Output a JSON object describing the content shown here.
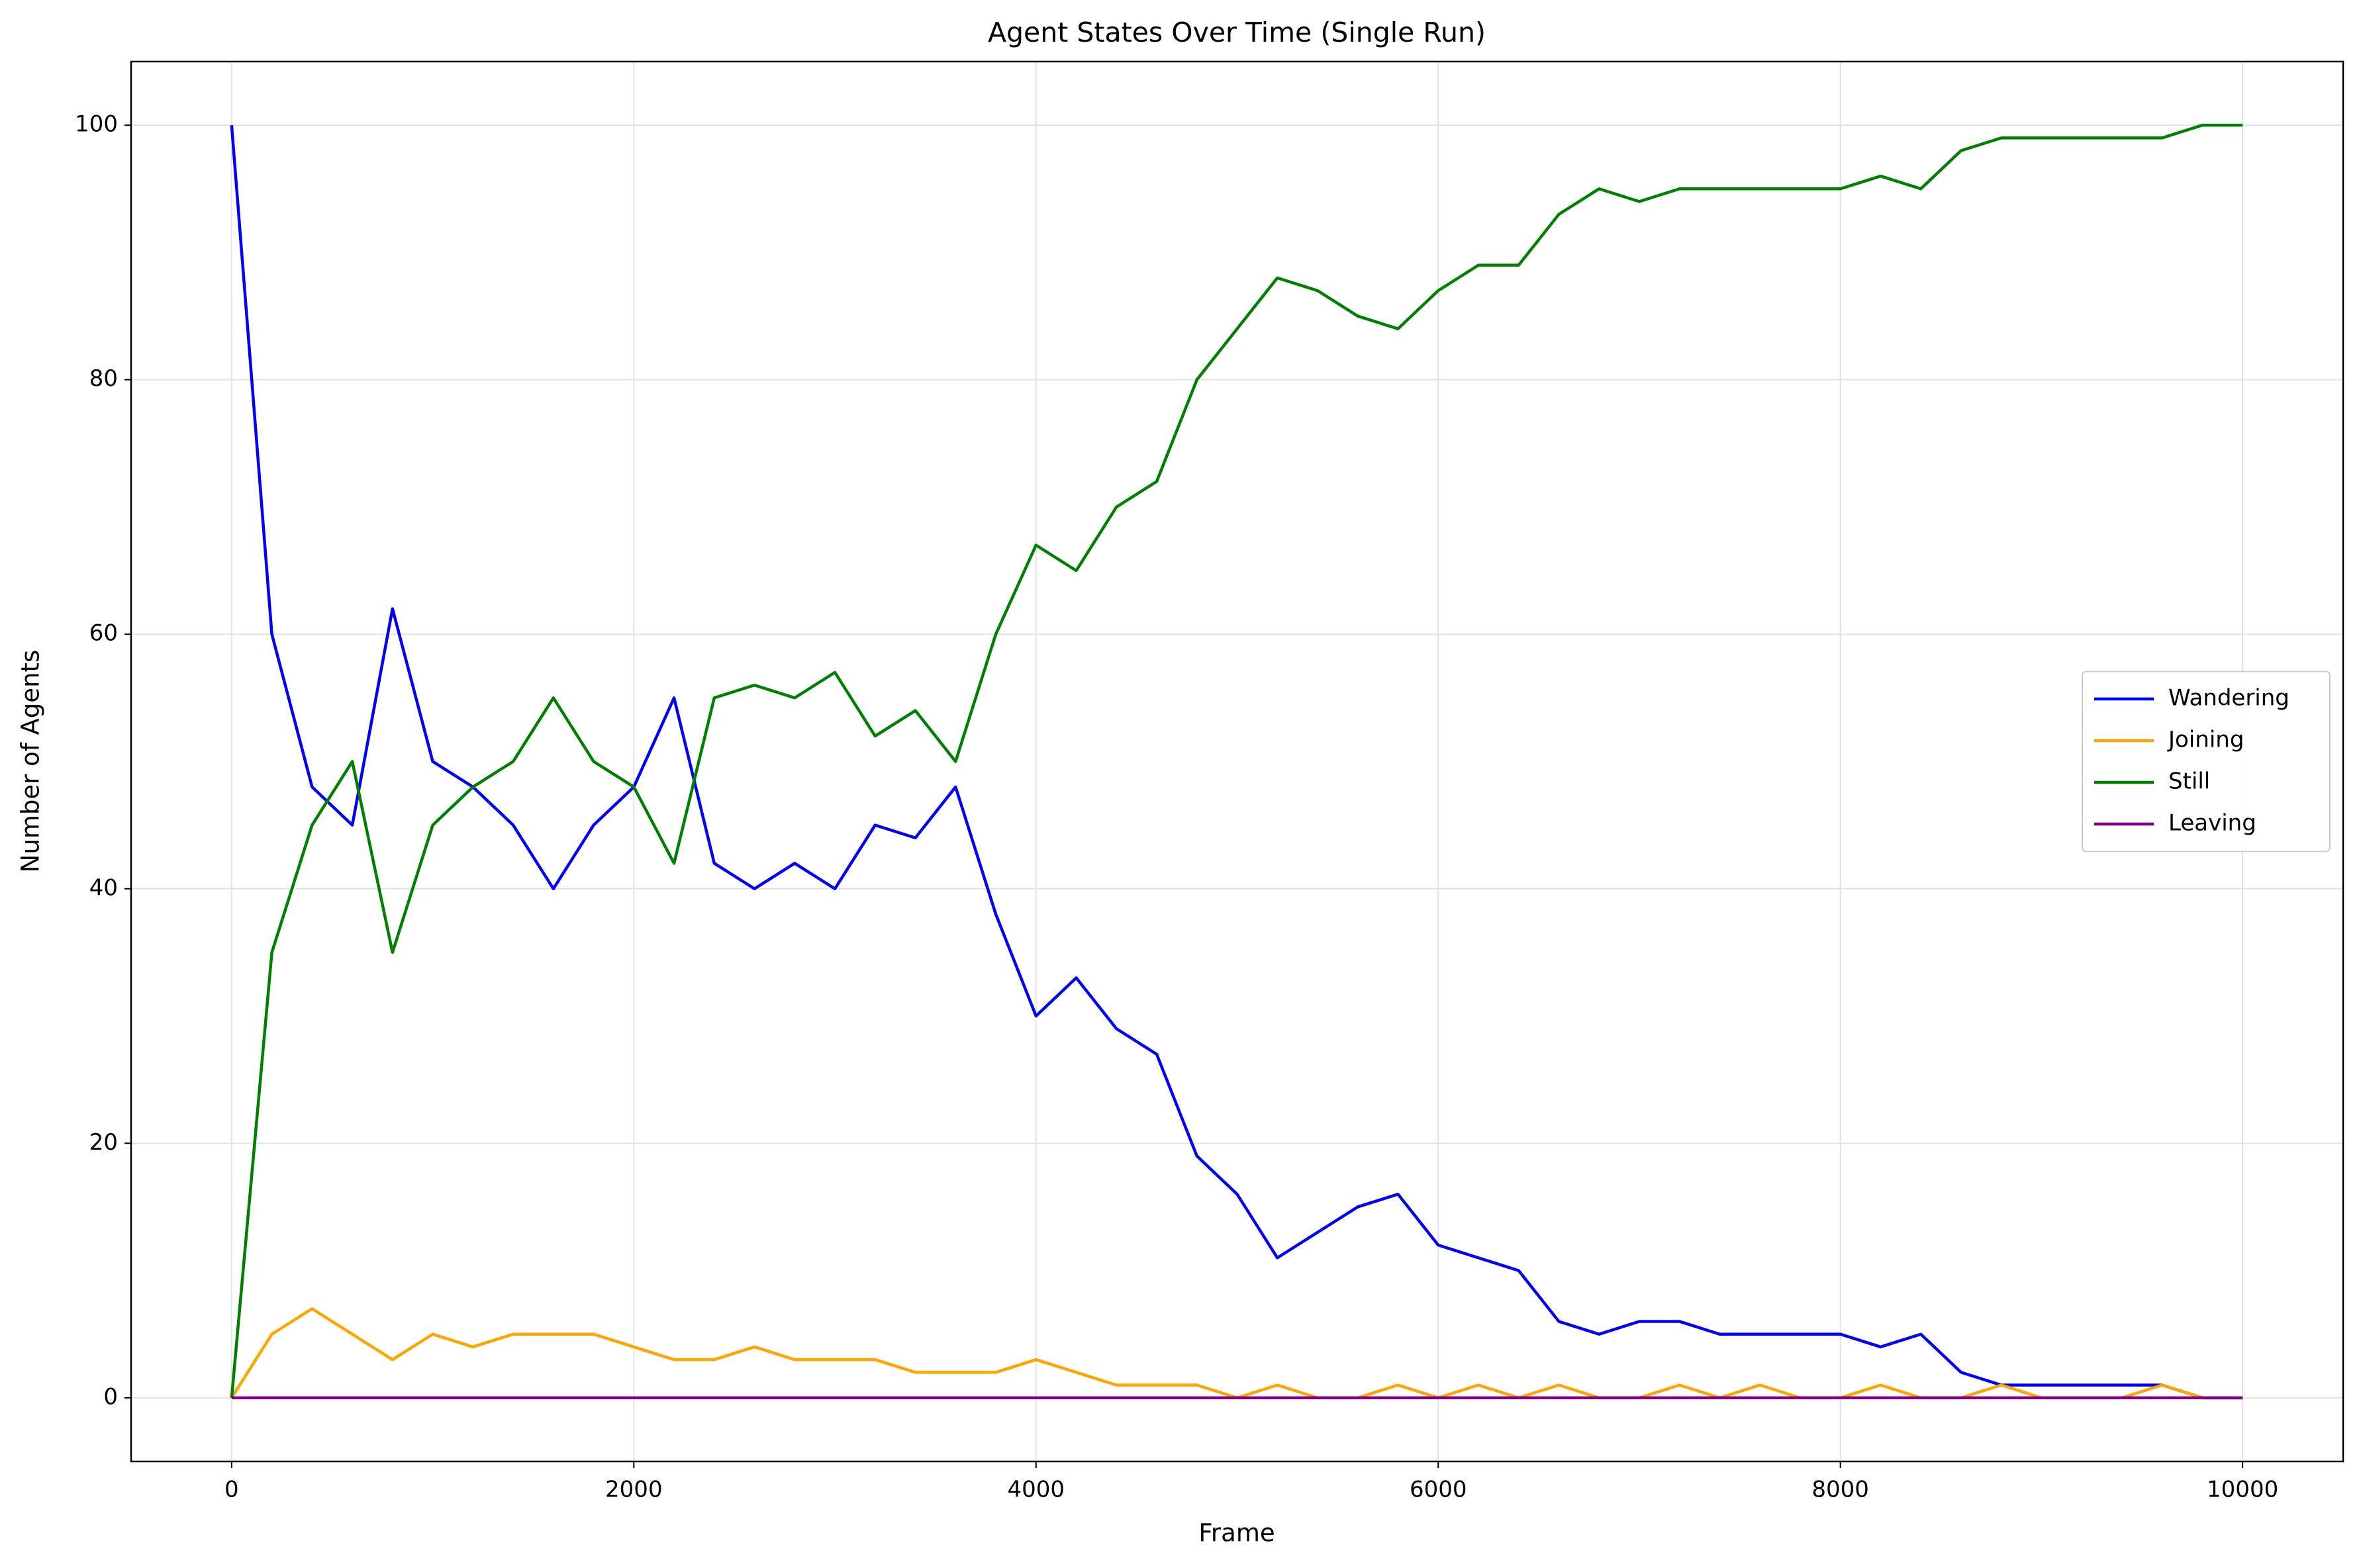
{
  "chart_data": {
    "type": "line",
    "title": "Agent States Over Time (Single Run)",
    "x_label": "Frame",
    "y_label": "Number of Agents",
    "x": [
      0,
      200,
      400,
      600,
      800,
      1000,
      1200,
      1400,
      1600,
      1800,
      2000,
      2200,
      2400,
      2600,
      2800,
      3000,
      3200,
      3400,
      3600,
      3800,
      4000,
      4200,
      4400,
      4600,
      4800,
      5000,
      5200,
      5400,
      5600,
      5800,
      6000,
      6200,
      6400,
      6600,
      6800,
      7000,
      7200,
      7400,
      7600,
      7800,
      8000,
      8200,
      8400,
      8600,
      8800,
      9000,
      9200,
      9400,
      9600,
      9800,
      10000
    ],
    "series": [
      {
        "name": "Wandering",
        "color": "#0000ff",
        "values": [
          100,
          60,
          48,
          45,
          62,
          50,
          48,
          45,
          40,
          45,
          48,
          55,
          42,
          40,
          42,
          40,
          45,
          44,
          48,
          38,
          30,
          33,
          29,
          27,
          19,
          16,
          11,
          13,
          15,
          16,
          12,
          11,
          10,
          6,
          5,
          6,
          6,
          5,
          5,
          5,
          5,
          4,
          5,
          2,
          1,
          1,
          1,
          1,
          1,
          0,
          0
        ]
      },
      {
        "name": "Joining",
        "color": "#ffa500",
        "values": [
          0,
          5,
          7,
          5,
          3,
          5,
          4,
          5,
          5,
          5,
          4,
          3,
          3,
          4,
          3,
          3,
          3,
          2,
          2,
          2,
          3,
          2,
          1,
          1,
          1,
          0,
          1,
          0,
          0,
          1,
          0,
          1,
          0,
          1,
          0,
          0,
          1,
          0,
          1,
          0,
          0,
          1,
          0,
          0,
          1,
          0,
          0,
          0,
          1,
          0,
          0
        ]
      },
      {
        "name": "Still",
        "color": "#008000",
        "values": [
          0,
          35,
          45,
          50,
          35,
          45,
          48,
          50,
          55,
          50,
          48,
          42,
          55,
          56,
          55,
          57,
          52,
          54,
          50,
          60,
          67,
          65,
          70,
          72,
          80,
          84,
          88,
          87,
          85,
          84,
          87,
          89,
          89,
          93,
          95,
          94,
          95,
          95,
          95,
          95,
          95,
          96,
          95,
          98,
          99,
          99,
          99,
          99,
          99,
          100,
          100
        ]
      },
      {
        "name": "Leaving",
        "color": "#800080",
        "values": [
          0,
          0,
          0,
          0,
          0,
          0,
          0,
          0,
          0,
          0,
          0,
          0,
          0,
          0,
          0,
          0,
          0,
          0,
          0,
          0,
          0,
          0,
          0,
          0,
          0,
          0,
          0,
          0,
          0,
          0,
          0,
          0,
          0,
          0,
          0,
          0,
          0,
          0,
          0,
          0,
          0,
          0,
          0,
          0,
          0,
          0,
          0,
          0,
          0,
          0,
          0
        ]
      }
    ],
    "xlim": [
      -500,
      10500
    ],
    "ylim": [
      -5,
      105
    ],
    "xticks": [
      0,
      2000,
      4000,
      6000,
      8000,
      10000
    ],
    "yticks": [
      0,
      20,
      40,
      60,
      80,
      100
    ],
    "grid": true,
    "legend": "center right"
  }
}
